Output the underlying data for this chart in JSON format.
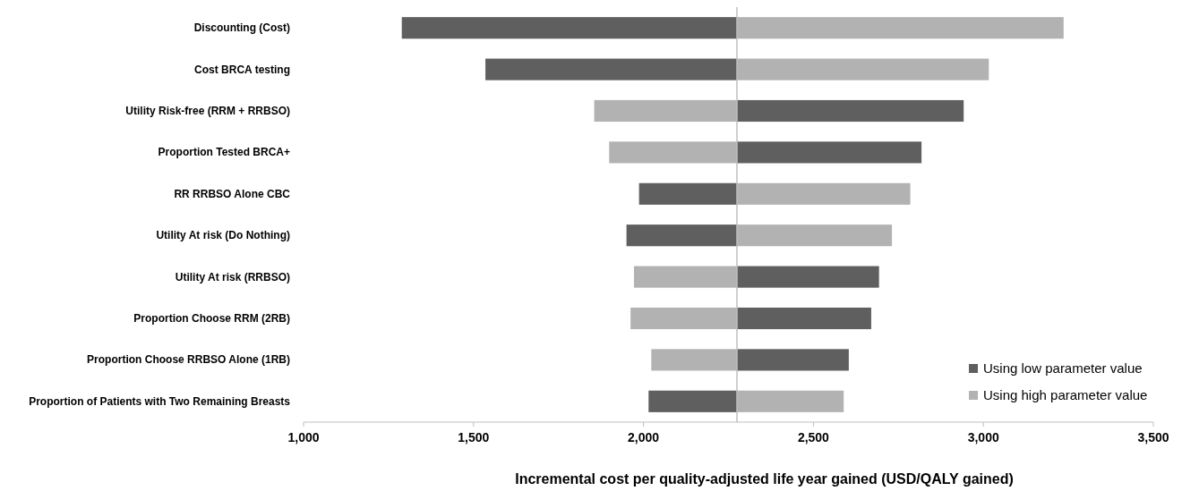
{
  "chart_data": {
    "type": "bar",
    "orientation": "horizontal",
    "xlabel": "Incremental cost per quality-adjusted life year gained (USD/QALY gained)",
    "categories": [
      "Discounting (Cost)",
      "Cost BRCA testing",
      "Utility Risk-free (RRM + RRBSO)",
      "Proportion Tested BRCA+",
      "RR RRBSO Alone CBC",
      "Utility At risk (Do Nothing)",
      "Utility At risk (RRBSO)",
      "Proportion Choose RRM (2RB)",
      "Proportion Choose RRBSO Alone (1RB)",
      "Proportion of Patients with Two Remaining Breasts"
    ],
    "series": [
      {
        "name": "Using low parameter value",
        "color": "#5f5f5f",
        "base": [
          2275,
          2275,
          2275,
          2275,
          2275,
          2275,
          2275,
          2275,
          2275,
          2275
        ],
        "values": [
          -986,
          -740,
          667,
          543,
          -288,
          -325,
          418,
          395,
          329,
          -260
        ]
      },
      {
        "name": "Using high parameter value",
        "color": "#b2b2b2",
        "base": [
          2275,
          2275,
          2275,
          2275,
          2275,
          2275,
          2275,
          2275,
          2275,
          2275
        ],
        "values": [
          961,
          741,
          -420,
          -376,
          510,
          456,
          -303,
          -313,
          -252,
          314
        ]
      }
    ],
    "xlim": [
      1000,
      3500
    ],
    "xticks": [
      {
        "value": 1000,
        "label": "1,000"
      },
      {
        "value": 1500,
        "label": "1,500"
      },
      {
        "value": 2000,
        "label": "2,000"
      },
      {
        "value": 2500,
        "label": "2,500"
      },
      {
        "value": 3000,
        "label": "3,000"
      },
      {
        "value": 3500,
        "label": "3,500"
      }
    ],
    "ref_lines": [
      {
        "axis": "x",
        "value": 2275,
        "color": "#bfbfbf"
      }
    ],
    "grid": false,
    "legend": "bottom right"
  }
}
